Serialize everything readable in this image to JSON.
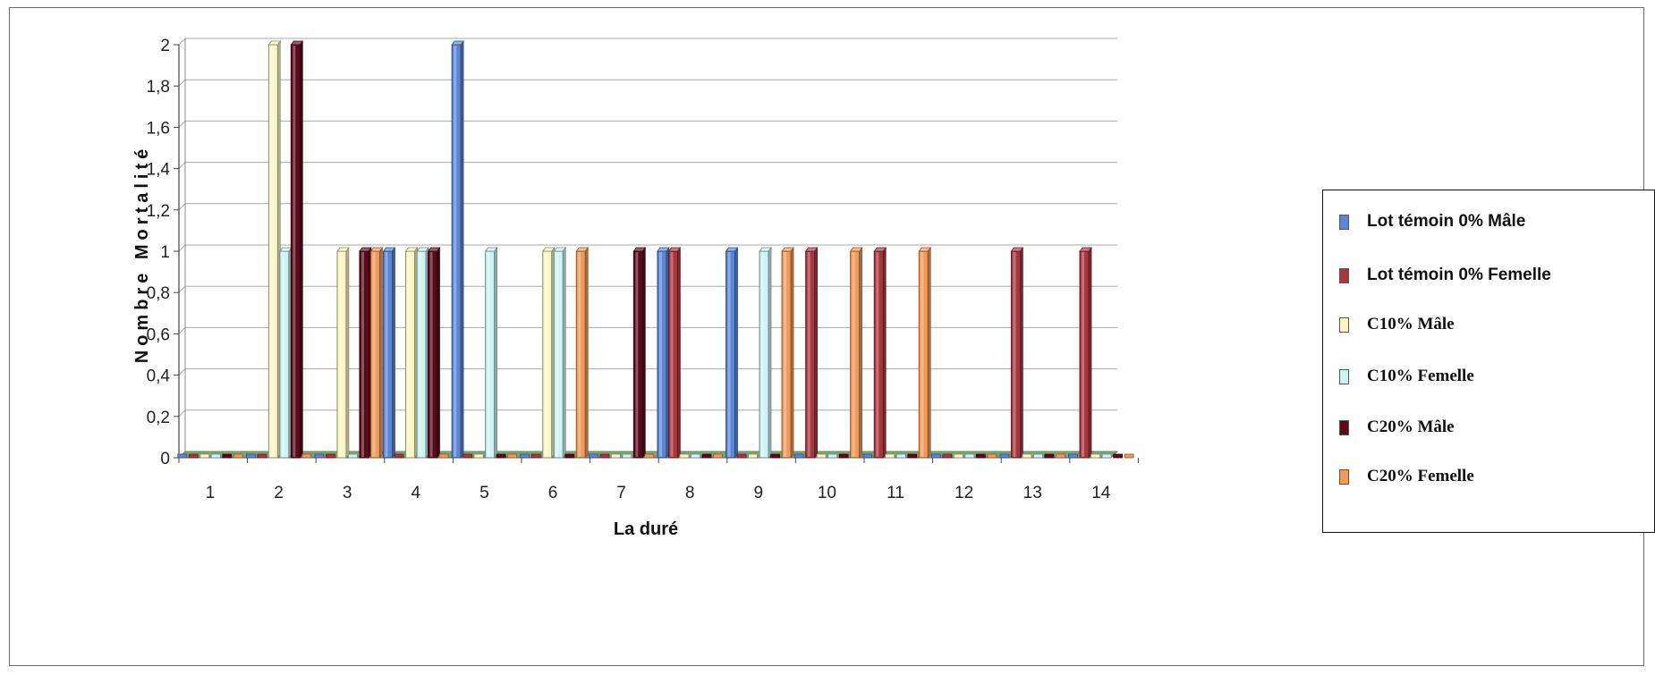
{
  "chart_data": {
    "type": "bar",
    "title": "",
    "xlabel": "La duré",
    "ylabel": "Nombre Mortalité",
    "ylim": [
      0,
      2
    ],
    "yticks": [
      "0",
      "0,2",
      "0,4",
      "0,6",
      "0,8",
      "1",
      "1,2",
      "1,4",
      "1,6",
      "1,8",
      "2"
    ],
    "grid": true,
    "legend_position": "right",
    "categories": [
      "1",
      "2",
      "3",
      "4",
      "5",
      "6",
      "7",
      "8",
      "9",
      "10",
      "11",
      "12",
      "13",
      "14"
    ],
    "series": [
      {
        "name": "Lot témoin 0% Mâle",
        "color": "#5b86d6",
        "values": [
          0,
          0,
          0,
          1,
          2,
          0,
          0,
          1,
          1,
          0,
          0,
          0,
          0,
          0
        ]
      },
      {
        "name": "Lot témoin 0% Femelle",
        "color": "#a8363f",
        "values": [
          0,
          0,
          0,
          0,
          0,
          0,
          0,
          1,
          0,
          1,
          1,
          0,
          1,
          1
        ]
      },
      {
        "name": "C10% Mâle",
        "color": "#fbf7c4",
        "values": [
          0,
          2,
          1,
          1,
          0,
          1,
          0,
          0,
          0,
          0,
          0,
          0,
          0,
          0
        ]
      },
      {
        "name": "C10% Femelle",
        "color": "#cdf3f3",
        "values": [
          0,
          1,
          0,
          1,
          1,
          1,
          0,
          0,
          1,
          0,
          0,
          0,
          0,
          0
        ]
      },
      {
        "name": "C20% Mâle",
        "color": "#5a0a1c",
        "values": [
          0,
          2,
          1,
          1,
          0,
          0,
          1,
          0,
          0,
          0,
          0,
          0,
          0,
          0
        ]
      },
      {
        "name": "C20% Femelle",
        "color": "#f29a58",
        "values": [
          0,
          0,
          1,
          0,
          0,
          1,
          0,
          0,
          1,
          1,
          1,
          0,
          0,
          0
        ]
      }
    ]
  }
}
